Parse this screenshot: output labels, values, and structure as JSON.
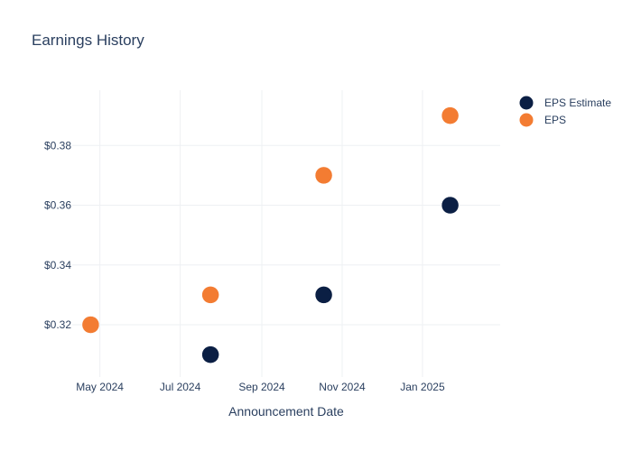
{
  "colors": {
    "eps_estimate": "#0b1f44",
    "eps": "#f37c32",
    "grid": "#eef0f3",
    "text": "#2a3f5f"
  },
  "chart_data": {
    "type": "scatter",
    "title": "Earnings History",
    "xlabel": "Announcement Date",
    "ylabel": "",
    "x_ticks": [
      "2024-05-01",
      "2024-07-01",
      "2024-09-01",
      "2024-11-01",
      "2025-01-01"
    ],
    "x_tick_labels": [
      "May 2024",
      "Jul 2024",
      "Sep 2024",
      "Nov 2024",
      "Jan 2025"
    ],
    "xlim": [
      "2024-04-10",
      "2025-03-01"
    ],
    "y_ticks": [
      0.32,
      0.34,
      0.36,
      0.38
    ],
    "y_tick_labels": [
      "$0.32",
      "$0.34",
      "$0.36",
      "$0.38"
    ],
    "ylim": [
      0.3025,
      0.3985
    ],
    "grid": true,
    "legend_position": "top-right",
    "series": [
      {
        "name": "EPS Estimate",
        "color": "#0b1f44",
        "points": [
          {
            "x": "2024-04-24",
            "y": 0.32
          },
          {
            "x": "2024-07-24",
            "y": 0.31
          },
          {
            "x": "2024-10-18",
            "y": 0.33
          },
          {
            "x": "2025-01-22",
            "y": 0.36
          }
        ]
      },
      {
        "name": "EPS",
        "color": "#f37c32",
        "points": [
          {
            "x": "2024-04-24",
            "y": 0.32
          },
          {
            "x": "2024-07-24",
            "y": 0.33
          },
          {
            "x": "2024-10-18",
            "y": 0.37
          },
          {
            "x": "2025-01-22",
            "y": 0.39
          }
        ]
      }
    ]
  }
}
